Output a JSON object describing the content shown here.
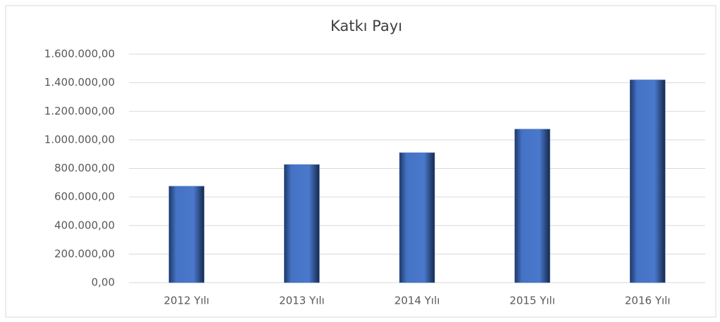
{
  "chart_data": {
    "type": "bar",
    "title": "Katkı Payı",
    "categories": [
      "2012 Yılı",
      "2013 Yılı",
      "2014 Yılı",
      "2015 Yılı",
      "2016 Yılı"
    ],
    "values": [
      675000,
      827000,
      910000,
      1075000,
      1420000
    ],
    "color": "#4472c4",
    "ylim": [
      0,
      1600000
    ],
    "yticks": [
      {
        "value": 0,
        "label": "0,00"
      },
      {
        "value": 200000,
        "label": "200.000,00"
      },
      {
        "value": 400000,
        "label": "400.000,00"
      },
      {
        "value": 600000,
        "label": "600.000,00"
      },
      {
        "value": 800000,
        "label": "800.000,00"
      },
      {
        "value": 1000000,
        "label": "1.000.000,00"
      },
      {
        "value": 1200000,
        "label": "1.200.000,00"
      },
      {
        "value": 1400000,
        "label": "1.400.000,00"
      },
      {
        "value": 1600000,
        "label": "1.600.000,00"
      }
    ],
    "grid": true
  }
}
